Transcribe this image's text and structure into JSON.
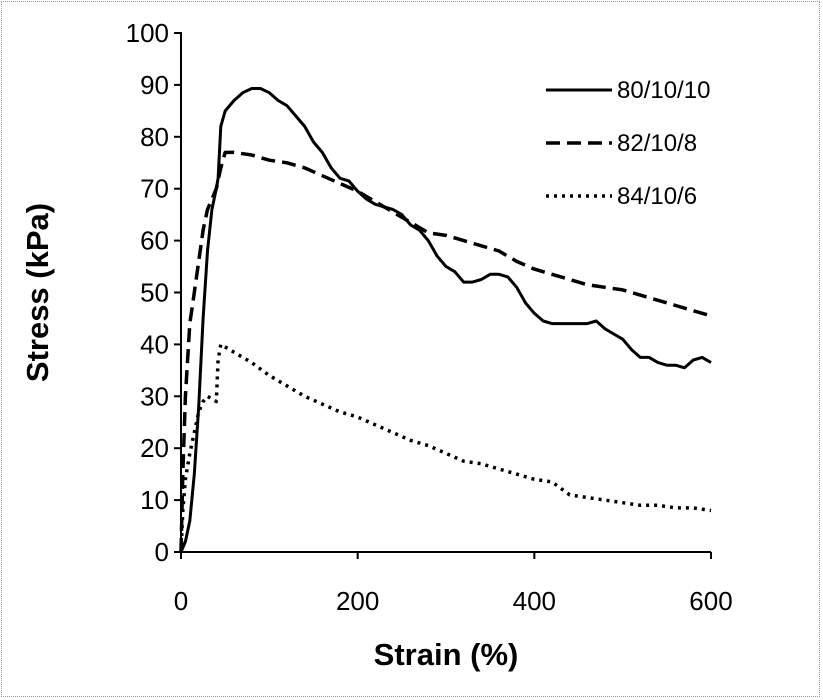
{
  "chart_data": {
    "type": "line",
    "xlabel": "Strain (%)",
    "ylabel": "Stress (kPa)",
    "xlim": [
      0,
      600
    ],
    "ylim": [
      0,
      100
    ],
    "xticks": [
      "0",
      "200",
      "400",
      "600"
    ],
    "yticks": [
      "0",
      "10",
      "20",
      "30",
      "40",
      "50",
      "60",
      "70",
      "80",
      "90",
      "100"
    ],
    "grid": false,
    "legend_position": "top-right",
    "series": [
      {
        "name": "80/10/10",
        "style": "solid",
        "x": [
          0,
          5,
          10,
          15,
          20,
          25,
          30,
          35,
          40,
          42,
          45,
          50,
          60,
          70,
          80,
          90,
          100,
          110,
          120,
          130,
          140,
          150,
          160,
          170,
          180,
          190,
          200,
          210,
          220,
          230,
          240,
          250,
          260,
          270,
          280,
          290,
          300,
          310,
          320,
          330,
          340,
          350,
          360,
          370,
          380,
          390,
          400,
          410,
          420,
          430,
          440,
          450,
          460,
          470,
          480,
          490,
          500,
          510,
          520,
          530,
          540,
          550,
          560,
          570,
          580,
          590,
          600
        ],
        "y": [
          0,
          2,
          6,
          15,
          28,
          45,
          58,
          66,
          70,
          72,
          82,
          85,
          87,
          88.5,
          89.3,
          89.3,
          88.5,
          87,
          86,
          84,
          82,
          79,
          77,
          74,
          72,
          71.5,
          69.5,
          68,
          67,
          66.5,
          66,
          65,
          63,
          62,
          60,
          57,
          55,
          54,
          52,
          52,
          52.5,
          53.5,
          53.5,
          53,
          51,
          48,
          46,
          44.5,
          44,
          44,
          44,
          44,
          44,
          44.5,
          43,
          42,
          41,
          39,
          37.5,
          37.5,
          36.5,
          36,
          36,
          35.5,
          37,
          37.5,
          36.5
        ]
      },
      {
        "name": "82/10/8",
        "style": "dashed",
        "x": [
          0,
          2,
          5,
          10,
          15,
          20,
          25,
          30,
          35,
          40,
          45,
          50,
          60,
          80,
          100,
          120,
          140,
          160,
          180,
          200,
          220,
          240,
          260,
          280,
          300,
          320,
          340,
          360,
          380,
          400,
          420,
          440,
          460,
          480,
          500,
          520,
          540,
          560,
          580,
          600
        ],
        "y": [
          0,
          15,
          30,
          44,
          50,
          56,
          62,
          66,
          68,
          70,
          74,
          77,
          77,
          76.5,
          75.5,
          75,
          74,
          72.5,
          71,
          69.5,
          67.5,
          65.5,
          63.5,
          61.5,
          61,
          60,
          59,
          58,
          56,
          54.5,
          53.5,
          52.5,
          51.5,
          51,
          50.5,
          49.5,
          48.5,
          47.5,
          46.5,
          45.5
        ]
      },
      {
        "name": "84/10/6",
        "style": "dotted",
        "x": [
          0,
          2,
          5,
          10,
          15,
          20,
          25,
          30,
          35,
          40,
          42,
          45,
          50,
          60,
          80,
          100,
          120,
          140,
          160,
          180,
          200,
          220,
          240,
          260,
          280,
          300,
          320,
          340,
          360,
          380,
          400,
          420,
          440,
          460,
          480,
          500,
          520,
          540,
          560,
          580,
          600
        ],
        "y": [
          0,
          8,
          14,
          19,
          23,
          27,
          29,
          30,
          29.5,
          29,
          37,
          40,
          39.5,
          38.5,
          36.5,
          34,
          32,
          30,
          28.5,
          27,
          26,
          24.5,
          23,
          21.5,
          20.5,
          19,
          17.5,
          17,
          16,
          15,
          14,
          13.5,
          11,
          10.5,
          10,
          9.5,
          9,
          9,
          8.5,
          8.5,
          8
        ]
      }
    ]
  }
}
